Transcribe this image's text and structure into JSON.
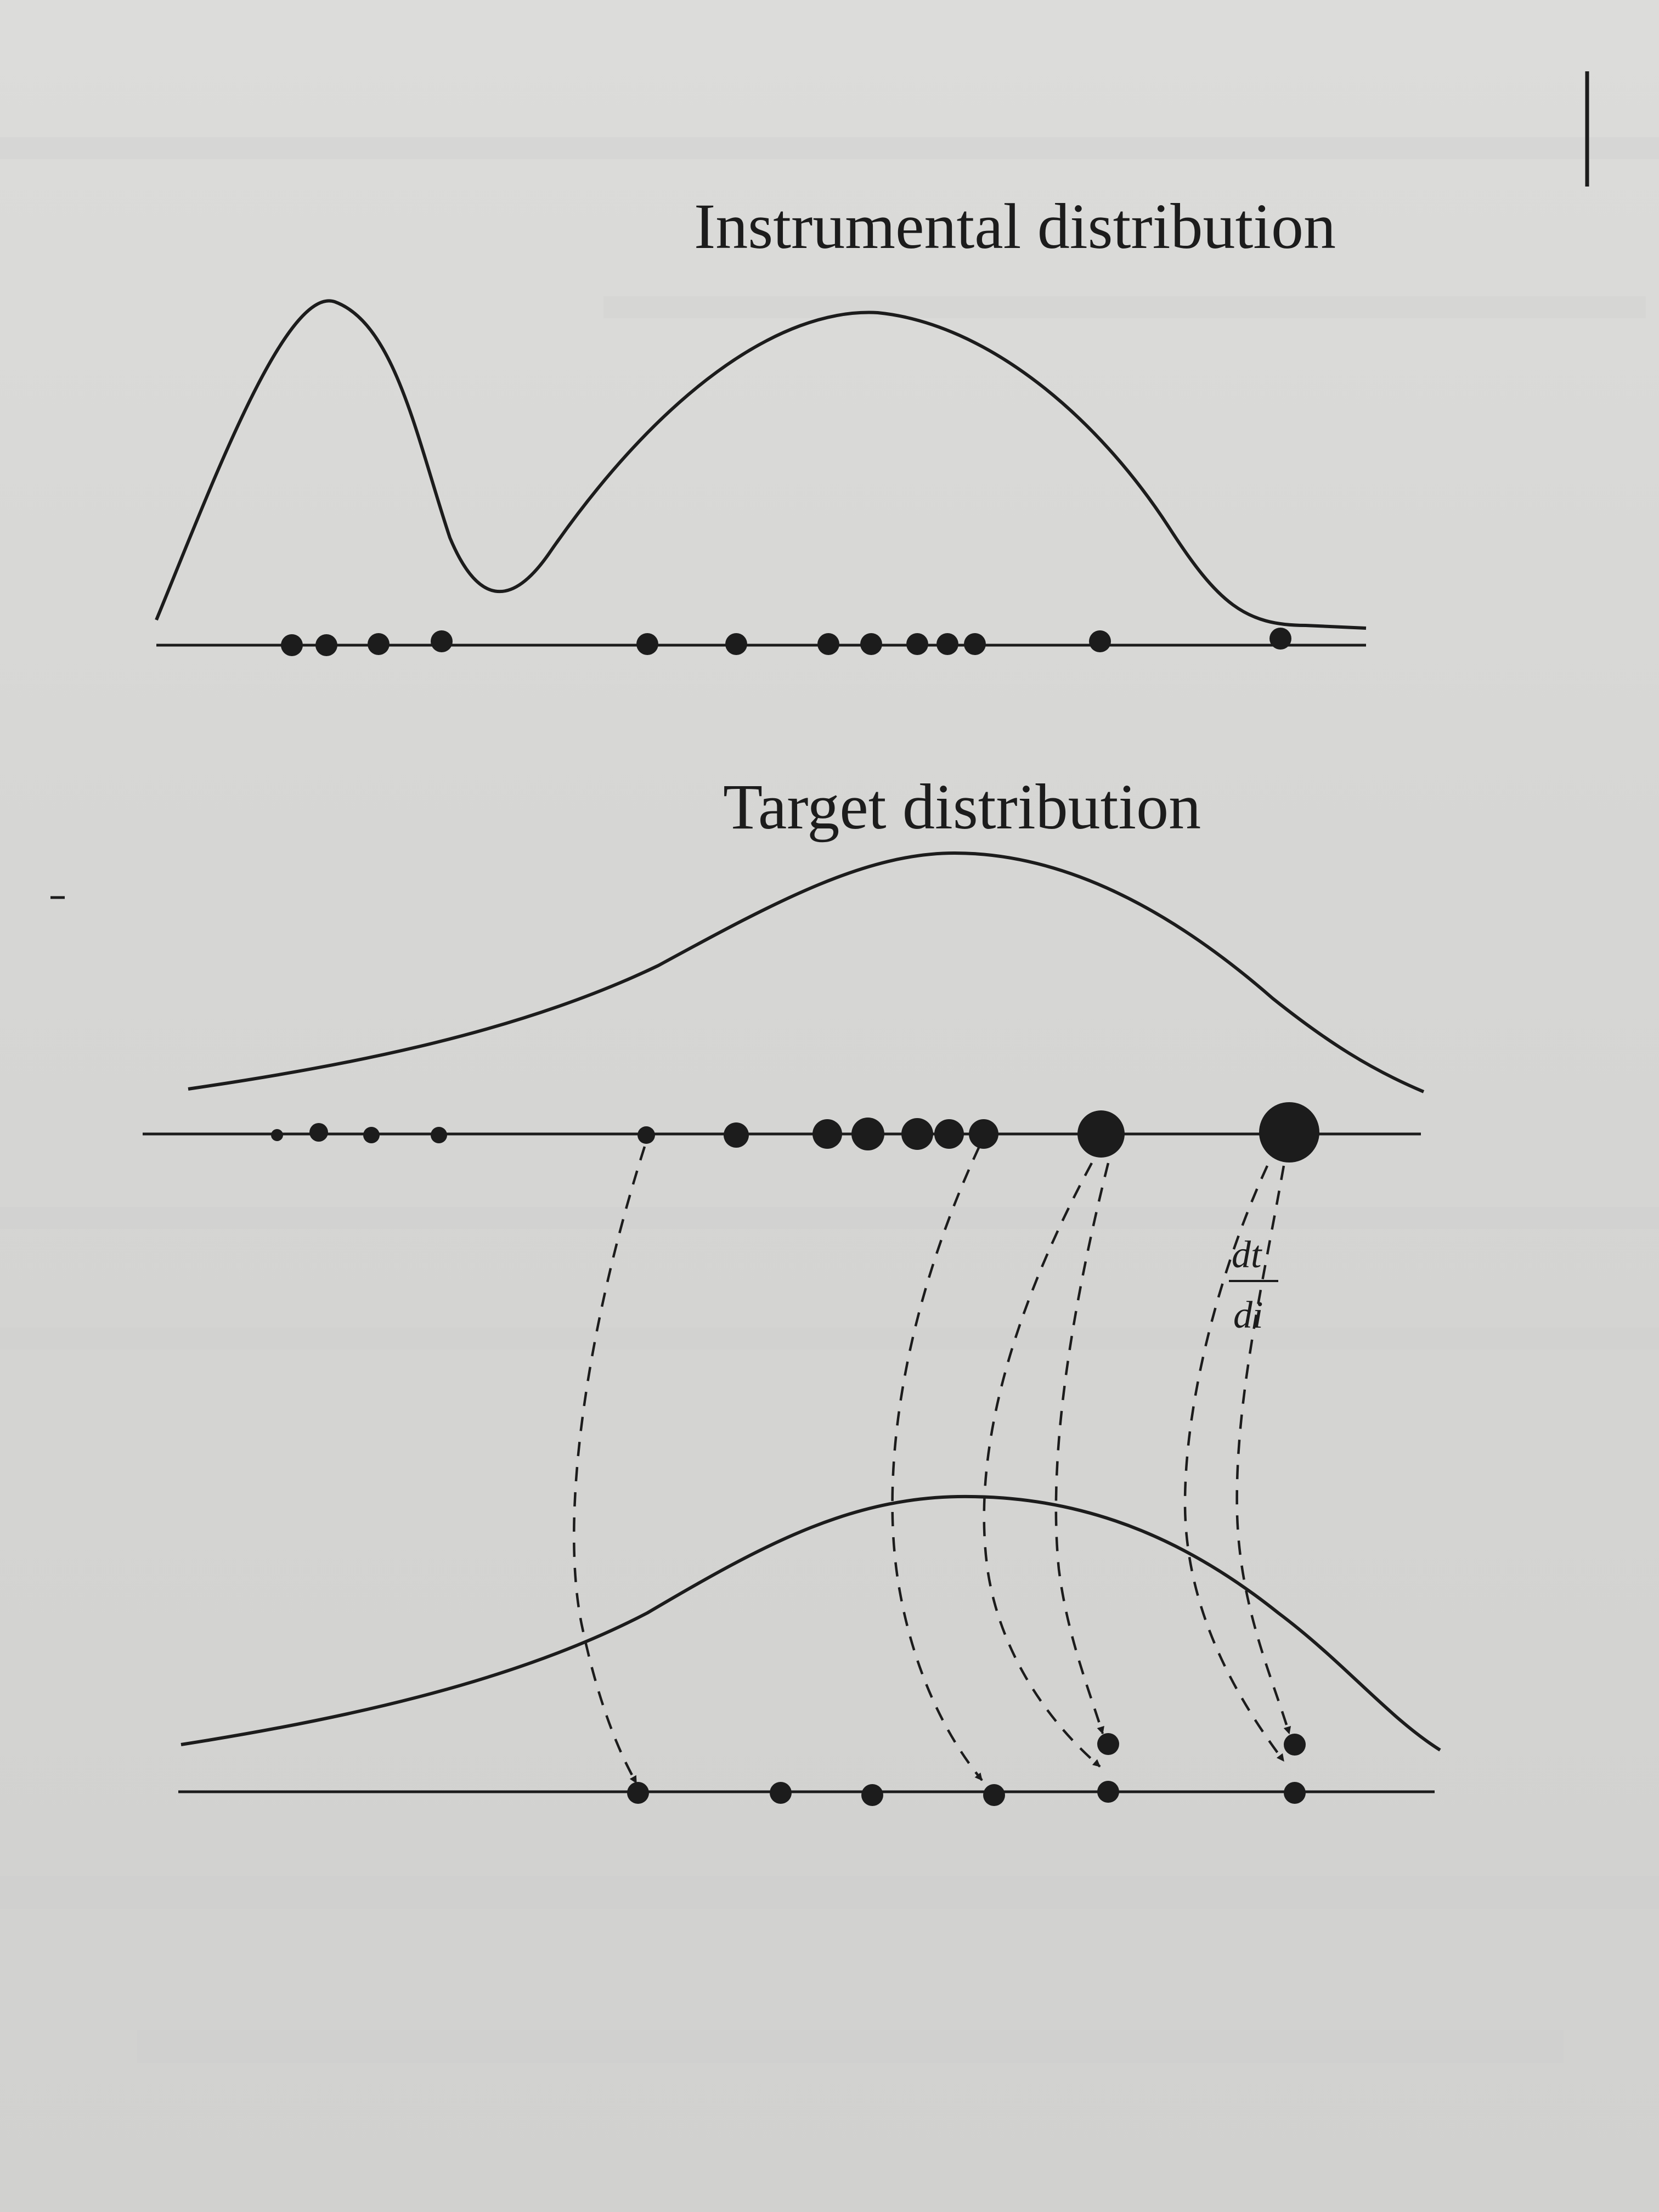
{
  "titles": {
    "instrumental": "Instrumental distribution",
    "target": "Target distribution"
  },
  "derivative_label": {
    "numerator": "dt",
    "denominator": "di"
  },
  "colors": {
    "ink": "#1c1c1c",
    "paper": "#d9d9d7"
  },
  "instrumental_samples": [
    1,
    2,
    3,
    4,
    5,
    6,
    7,
    8,
    9,
    10,
    11,
    12,
    13
  ],
  "weighted_samples": [
    1,
    2,
    3,
    4,
    5,
    6,
    7,
    8,
    9,
    10,
    11,
    12,
    13
  ],
  "resampled_points": [
    1,
    2,
    3,
    4,
    5,
    6,
    7
  ]
}
